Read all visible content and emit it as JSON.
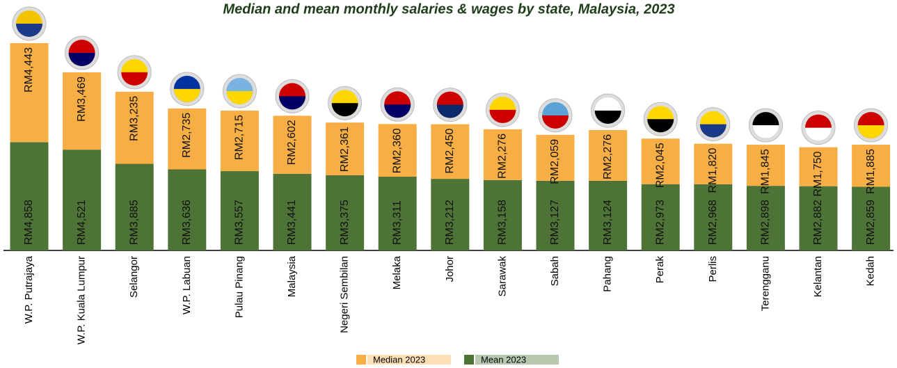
{
  "chart_data": {
    "type": "stacked_bar",
    "title": "Median and mean monthly salaries & wages by state, Malaysia, 2023",
    "categories": [
      "W.P. Putrajaya",
      "W.P. Kuala Lumpur",
      "Selangor",
      "W.P. Labuan",
      "Pulau Pinang",
      "Malaysia",
      "Negeri Sembilan",
      "Melaka",
      "Johor",
      "Sarawak",
      "Sabah",
      "Pahang",
      "Perak",
      "Perlis",
      "Terengganu",
      "Kelantan",
      "Kedah"
    ],
    "series": [
      {
        "name": "Mean 2023",
        "color": "#4e7336",
        "values": [
          4858,
          4521,
          3885,
          3636,
          3557,
          3441,
          3375,
          3311,
          3212,
          3158,
          3127,
          3124,
          2973,
          2968,
          2898,
          2882,
          2859
        ],
        "value_labels": [
          "RM4,858",
          "RM4,521",
          "RM3,885",
          "RM3,636",
          "RM3,557",
          "RM3,441",
          "RM3,375",
          "RM3,311",
          "RM3,212",
          "RM3,158",
          "RM3,127",
          "RM3,124",
          "RM2,973",
          "RM2,968",
          "RM2,898",
          "RM2,882",
          "RM2,859"
        ]
      },
      {
        "name": "Median 2023",
        "color": "#f7ae45",
        "values": [
          4443,
          3469,
          3235,
          2735,
          2715,
          2602,
          2361,
          2360,
          2450,
          2276,
          2059,
          2276,
          2045,
          1820,
          1845,
          1750,
          1885
        ],
        "value_labels": [
          "RM4,443",
          "RM3,469",
          "RM3,235",
          "RM2,735",
          "RM2,715",
          "RM2,602",
          "RM2,361",
          "RM2,360",
          "RM2,450",
          "RM2,276",
          "RM2,059",
          "RM2,276",
          "RM2,045",
          "RM1,820",
          "RM1,845",
          "RM1,750",
          "RM1,885"
        ]
      }
    ]
  }
}
